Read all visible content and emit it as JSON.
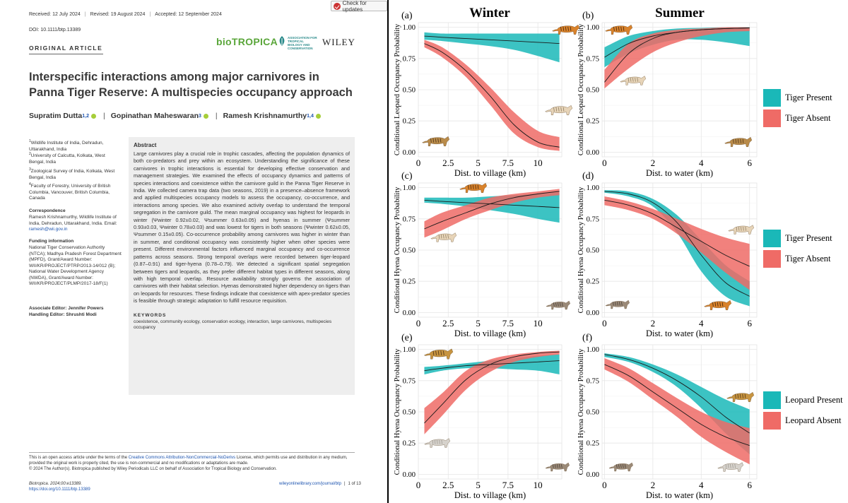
{
  "paper": {
    "check_updates": "Check for updates",
    "received": "Received: 12 July 2024",
    "revised": "Revised: 19 August 2024",
    "accepted": "Accepted: 12 September 2024",
    "doi": "DOI: 10.1111/btp.13389",
    "article_type": "ORIGINAL ARTICLE",
    "journal_brand": "bioTROPICA",
    "society_brand": "ASSOCIATION FOR TROPICAL BIOLOGY AND CONSERVATION",
    "publisher_brand": "WILEY",
    "title": "Interspecific interactions among major carnivores in Panna Tiger Reserve: A multispecies occupancy approach",
    "authors": [
      {
        "name": "Supratim Dutta",
        "sup": "1,2"
      },
      {
        "name": "Gopinathan Maheswaran",
        "sup": "3"
      },
      {
        "name": "Ramesh Krishnamurthy",
        "sup": "1,4"
      }
    ],
    "affiliations": [
      {
        "sup": "1",
        "text": "Wildlife Institute of India, Dehradun, Uttarakhand, India"
      },
      {
        "sup": "2",
        "text": "University of Calcutta, Kolkata, West Bengal, India"
      },
      {
        "sup": "3",
        "text": "Zoological Survey of India, Kolkata, West Bengal, India"
      },
      {
        "sup": "4",
        "text": "Faculty of Forestry, University of British Columbia, Vancouver, British Columbia, Canada"
      }
    ],
    "correspondence_head": "Correspondence",
    "correspondence_text": "Ramesh Krishnamurthy, Wildlife Institute of India, Dehradun, Uttarakhand, India.",
    "email_label": "Email:",
    "email": "ramesh@wii.gov.in",
    "funding_head": "Funding information",
    "funding_text": "National Tiger Conservation Authority (NTCA); Madhya Pradesh Forest Department (MPFD), Grant/Award Number: WII/KR/PROJECT/PTRP/2013-14/012 (B); National Water Development Agency (NWDA), Grant/Award Number: WII/KR/PROJECT/PLMP/2017-18/F(1)",
    "associate_editor": "Associate Editor: Jennifer Powers",
    "handling_editor": "Handling Editor: Shrushti Modi",
    "abstract_head": "Abstract",
    "abstract": "Large carnivores play a crucial role in trophic cascades, affecting the population dynamics of both co-predators and prey within an ecosystem. Understanding the significance of these carnivores in trophic interactions is essential for developing effective conservation and management strategies. We examined the effects of occupancy dynamics and patterns of species interactions and coexistence within the carnivore guild in the Panna Tiger Reserve in India. We collected camera trap data (two seasons, 2019) in a presence–absence framework and applied multispecies occupancy models to assess the occupancy, co-occurrence, and interactions among species. We also examined activity overlap to understand the temporal segregation in the carnivore guild. The mean marginal occupancy was highest for leopards in winter (Ψwinter 0.92±0.02, Ψsummer 0.63±0.05) and hyenas in summer (Ψsummer 0.93±0.03, Ψwinter 0.78±0.03) and was lowest for tigers in both seasons (Ψwinter 0.62±0.05, Ψsummer 0.15±0.05). Co-occurrence probability among carnivores was higher in winter than in summer, and conditional occupancy was consistently higher when other species were present. Different environmental factors influenced marginal occupancy and co-occurrence patterns across seasons. Strong temporal overlaps were recorded between tiger-leopard (0.87–0.91) and tiger-hyena (0.78–0.79). We detected a significant spatial segregation between tigers and leopards, as they prefer different habitat types in different seasons, along with high temporal overlap. Resource availability strongly governs the association of carnivores with their habitat selection. Hyenas demonstrated higher dependency on tigers than on leopards for resources. These findings indicate that coexistence with apex-predator species is feasible through strategic adaptation to fulfill resource requisition.",
    "keywords_head": "KEYWORDS",
    "keywords": "coexistence, community ecology, conservation ecology, interaction, large carnivores, multispecies occupancy",
    "license_pre": "This is an open access article under the terms of the",
    "license_link": "Creative Commons Attribution-NonCommercial-NoDerivs",
    "license_post": "License, which permits use and distribution in any medium, provided the original work is properly cited, the use is non-commercial and no modifications or adaptations are made.",
    "copyright": "© 2024 The Author(s). Biotropica published by Wiley Periodicals LLC on behalf of Association for Tropical Biology and Conservation.",
    "citation": "Biotropica. 2024;00:e13389.",
    "citation_url": "https://doi.org/10.1111/btp.13389",
    "journal_url": "wileyonlinelibrary.com/journal/btp",
    "page": "1 of 13"
  },
  "figure": {
    "col_titles": [
      "Winter",
      "Summer"
    ],
    "legends": [
      {
        "items": [
          {
            "label": "Tiger Present",
            "color": "#1ab8b8"
          },
          {
            "label": "Tiger Absent",
            "color": "#ef6b66"
          }
        ]
      },
      {
        "items": [
          {
            "label": "Tiger Present",
            "color": "#1ab8b8"
          },
          {
            "label": "Tiger Absent",
            "color": "#ef6b66"
          }
        ]
      },
      {
        "items": [
          {
            "label": "Leopard Present",
            "color": "#1ab8b8"
          },
          {
            "label": "Leopard Absent",
            "color": "#ef6b66"
          }
        ]
      }
    ]
  },
  "chart_data": [
    {
      "panel": "(a)",
      "type": "area",
      "title": "Winter",
      "xlabel": "Dist. to village (km)",
      "ylabel": "Conditional Leopard Occupancy Probability",
      "xlim": [
        0,
        12
      ],
      "ylim": [
        0,
        1
      ],
      "xticks": [
        "0",
        "2.5",
        "5",
        "7.5",
        "10"
      ],
      "yticks": [
        "0.00",
        "0.25",
        "0.50",
        "0.75",
        "1.00"
      ],
      "xtick_values": [
        0,
        2.5,
        5,
        7.5,
        10
      ],
      "x": [
        0.5,
        2,
        4,
        6,
        8,
        10,
        11.8
      ],
      "series": [
        {
          "name": "Tiger Present",
          "color": "#1ab8b8",
          "mean": [
            0.93,
            0.92,
            0.91,
            0.9,
            0.89,
            0.88,
            0.87
          ],
          "lower": [
            0.9,
            0.89,
            0.87,
            0.85,
            0.82,
            0.77,
            0.72
          ],
          "upper": [
            0.96,
            0.95,
            0.95,
            0.95,
            0.95,
            0.95,
            0.95
          ]
        },
        {
          "name": "Tiger Absent",
          "color": "#ef6b66",
          "mean": [
            0.87,
            0.8,
            0.65,
            0.45,
            0.22,
            0.08,
            0.04
          ],
          "lower": [
            0.84,
            0.76,
            0.6,
            0.38,
            0.15,
            0.04,
            0.01
          ],
          "upper": [
            0.9,
            0.84,
            0.7,
            0.52,
            0.32,
            0.17,
            0.12
          ]
        }
      ]
    },
    {
      "panel": "(b)",
      "type": "area",
      "title": "Summer",
      "xlabel": "Dist. to water (km)",
      "ylabel": "Conditional Leopard Occupancy Probability",
      "xlim": [
        -0.1,
        6.3
      ],
      "ylim": [
        0,
        1
      ],
      "xticks": [
        "0",
        "2",
        "4",
        "6"
      ],
      "yticks": [
        "0.00",
        "0.25",
        "0.50",
        "0.75",
        "1.00"
      ],
      "xtick_values": [
        0,
        2,
        4,
        6
      ],
      "x": [
        0,
        1,
        2,
        3,
        4,
        5,
        6
      ],
      "series": [
        {
          "name": "Tiger Present",
          "color": "#1ab8b8",
          "mean": [
            0.76,
            0.87,
            0.93,
            0.96,
            0.98,
            0.99,
            0.995
          ],
          "lower": [
            0.68,
            0.79,
            0.86,
            0.9,
            0.9,
            0.88,
            0.85
          ],
          "upper": [
            0.84,
            0.93,
            0.97,
            0.99,
            0.995,
            1.0,
            1.0
          ]
        },
        {
          "name": "Tiger Absent",
          "color": "#ef6b66",
          "mean": [
            0.56,
            0.79,
            0.91,
            0.96,
            0.98,
            0.99,
            0.995
          ],
          "lower": [
            0.51,
            0.67,
            0.8,
            0.88,
            0.93,
            0.96,
            0.97
          ],
          "upper": [
            0.66,
            0.87,
            0.95,
            0.98,
            0.99,
            1.0,
            1.0
          ]
        }
      ]
    },
    {
      "panel": "(c)",
      "type": "area",
      "title": "",
      "xlabel": "Dist. to village (km)",
      "ylabel": "Conditional Hyena Occupancy Probability",
      "xlim": [
        0,
        12
      ],
      "ylim": [
        0,
        1
      ],
      "xticks": [
        "0",
        "2.5",
        "5",
        "7.5",
        "10"
      ],
      "yticks": [
        "0.00",
        "0.25",
        "0.50",
        "0.75",
        "1.00"
      ],
      "xtick_values": [
        0,
        2.5,
        5,
        7.5,
        10
      ],
      "x": [
        0.5,
        2,
        4,
        6,
        8,
        10,
        11.8
      ],
      "series": [
        {
          "name": "Tiger Present",
          "color": "#1ab8b8",
          "mean": [
            0.9,
            0.89,
            0.88,
            0.87,
            0.86,
            0.85,
            0.84
          ],
          "lower": [
            0.88,
            0.87,
            0.85,
            0.82,
            0.79,
            0.75,
            0.72
          ],
          "upper": [
            0.92,
            0.92,
            0.92,
            0.93,
            0.94,
            0.95,
            0.96
          ]
        },
        {
          "name": "Tiger Absent",
          "color": "#ef6b66",
          "mean": [
            0.67,
            0.73,
            0.8,
            0.87,
            0.92,
            0.95,
            0.97
          ],
          "lower": [
            0.6,
            0.66,
            0.75,
            0.82,
            0.88,
            0.92,
            0.94
          ],
          "upper": [
            0.73,
            0.8,
            0.86,
            0.92,
            0.95,
            0.97,
            0.99
          ]
        }
      ]
    },
    {
      "panel": "(d)",
      "type": "area",
      "title": "",
      "xlabel": "Dist. to water (km)",
      "ylabel": "Conditional Hyena Occupancy Probability",
      "xlim": [
        -0.1,
        6.3
      ],
      "ylim": [
        0,
        1
      ],
      "xticks": [
        "0",
        "2",
        "4",
        "6"
      ],
      "yticks": [
        "0.00",
        "0.25",
        "0.50",
        "0.75",
        "1.00"
      ],
      "xtick_values": [
        0,
        2,
        4,
        6
      ],
      "x": [
        0,
        1,
        2,
        3,
        4,
        5,
        6
      ],
      "series": [
        {
          "name": "Tiger Present",
          "color": "#1ab8b8",
          "mean": [
            0.97,
            0.95,
            0.88,
            0.72,
            0.46,
            0.24,
            0.13
          ],
          "lower": [
            0.96,
            0.93,
            0.85,
            0.64,
            0.33,
            0.13,
            0.05
          ],
          "upper": [
            0.98,
            0.97,
            0.91,
            0.78,
            0.58,
            0.38,
            0.25
          ]
        },
        {
          "name": "Tiger Absent",
          "color": "#ef6b66",
          "mean": [
            0.9,
            0.86,
            0.79,
            0.68,
            0.57,
            0.46,
            0.37
          ],
          "lower": [
            0.86,
            0.82,
            0.75,
            0.63,
            0.48,
            0.32,
            0.18
          ],
          "upper": [
            0.93,
            0.89,
            0.83,
            0.75,
            0.67,
            0.6,
            0.55
          ]
        }
      ]
    },
    {
      "panel": "(e)",
      "type": "area",
      "title": "",
      "xlabel": "Dist. to village (km)",
      "ylabel": "Conditional Hyena Occupancy Probability",
      "xlim": [
        0,
        12
      ],
      "ylim": [
        0,
        1
      ],
      "xticks": [
        "0",
        "2.5",
        "5",
        "7.5",
        "10"
      ],
      "yticks": [
        "0.00",
        "0.25",
        "0.50",
        "0.75",
        "1.00"
      ],
      "xtick_values": [
        0,
        2.5,
        5,
        7.5,
        10
      ],
      "x": [
        0.5,
        2,
        4,
        6,
        8,
        10,
        11.8
      ],
      "series": [
        {
          "name": "Leopard Present",
          "color": "#1ab8b8",
          "mean": [
            0.83,
            0.85,
            0.87,
            0.88,
            0.89,
            0.9,
            0.91
          ],
          "lower": [
            0.8,
            0.83,
            0.85,
            0.85,
            0.84,
            0.83,
            0.8
          ],
          "upper": [
            0.86,
            0.87,
            0.89,
            0.91,
            0.93,
            0.95,
            0.96
          ]
        },
        {
          "name": "Leopard Absent",
          "color": "#ef6b66",
          "mean": [
            0.41,
            0.56,
            0.76,
            0.88,
            0.94,
            0.97,
            0.98
          ],
          "lower": [
            0.32,
            0.47,
            0.68,
            0.82,
            0.9,
            0.94,
            0.96
          ],
          "upper": [
            0.53,
            0.65,
            0.83,
            0.92,
            0.96,
            0.98,
            0.99
          ]
        }
      ]
    },
    {
      "panel": "(f)",
      "type": "area",
      "title": "",
      "xlabel": "Dist. to water (km)",
      "ylabel": "Conditional Hyena Occupancy Probability",
      "xlim": [
        -0.1,
        6.3
      ],
      "ylim": [
        0,
        1
      ],
      "xticks": [
        "0",
        "2",
        "4",
        "6"
      ],
      "yticks": [
        "0.00",
        "0.25",
        "0.50",
        "0.75",
        "1.00"
      ],
      "xtick_values": [
        0,
        2,
        4,
        6
      ],
      "x": [
        0,
        1,
        2,
        3,
        4,
        5,
        6
      ],
      "series": [
        {
          "name": "Leopard Present",
          "color": "#1ab8b8",
          "mean": [
            0.96,
            0.92,
            0.85,
            0.75,
            0.62,
            0.46,
            0.33
          ],
          "lower": [
            0.94,
            0.9,
            0.82,
            0.7,
            0.53,
            0.33,
            0.16
          ],
          "upper": [
            0.97,
            0.94,
            0.88,
            0.8,
            0.7,
            0.6,
            0.52
          ]
        },
        {
          "name": "Leopard Absent",
          "color": "#ef6b66",
          "mean": [
            0.88,
            0.79,
            0.66,
            0.53,
            0.4,
            0.3,
            0.23
          ],
          "lower": [
            0.84,
            0.74,
            0.6,
            0.46,
            0.3,
            0.18,
            0.08
          ],
          "upper": [
            0.93,
            0.85,
            0.73,
            0.61,
            0.5,
            0.42,
            0.37
          ]
        }
      ]
    }
  ]
}
